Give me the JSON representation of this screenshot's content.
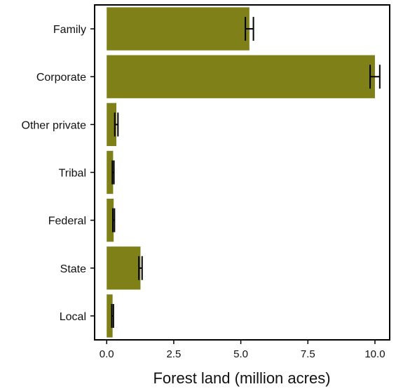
{
  "chart_data": {
    "type": "bar",
    "orientation": "horizontal",
    "categories": [
      "Family",
      "Corporate",
      "Other private",
      "Tribal",
      "Federal",
      "State",
      "Local"
    ],
    "values": [
      5.32,
      10.0,
      0.36,
      0.24,
      0.26,
      1.26,
      0.22
    ],
    "error": [
      0.15,
      0.18,
      0.06,
      0.03,
      0.03,
      0.06,
      0.03
    ],
    "xlabel": "Forest land (million acres)",
    "ylabel": "",
    "title": "",
    "xlim": [
      -0.45,
      10.55
    ],
    "x_ticks": [
      "0.0",
      "2.5",
      "5.0",
      "7.5",
      "10.0"
    ],
    "x_tick_values": [
      0,
      2.5,
      5,
      7.5,
      10
    ],
    "grid": false,
    "legend": "none",
    "bar_color": "#808018",
    "error_color": "#000000"
  }
}
